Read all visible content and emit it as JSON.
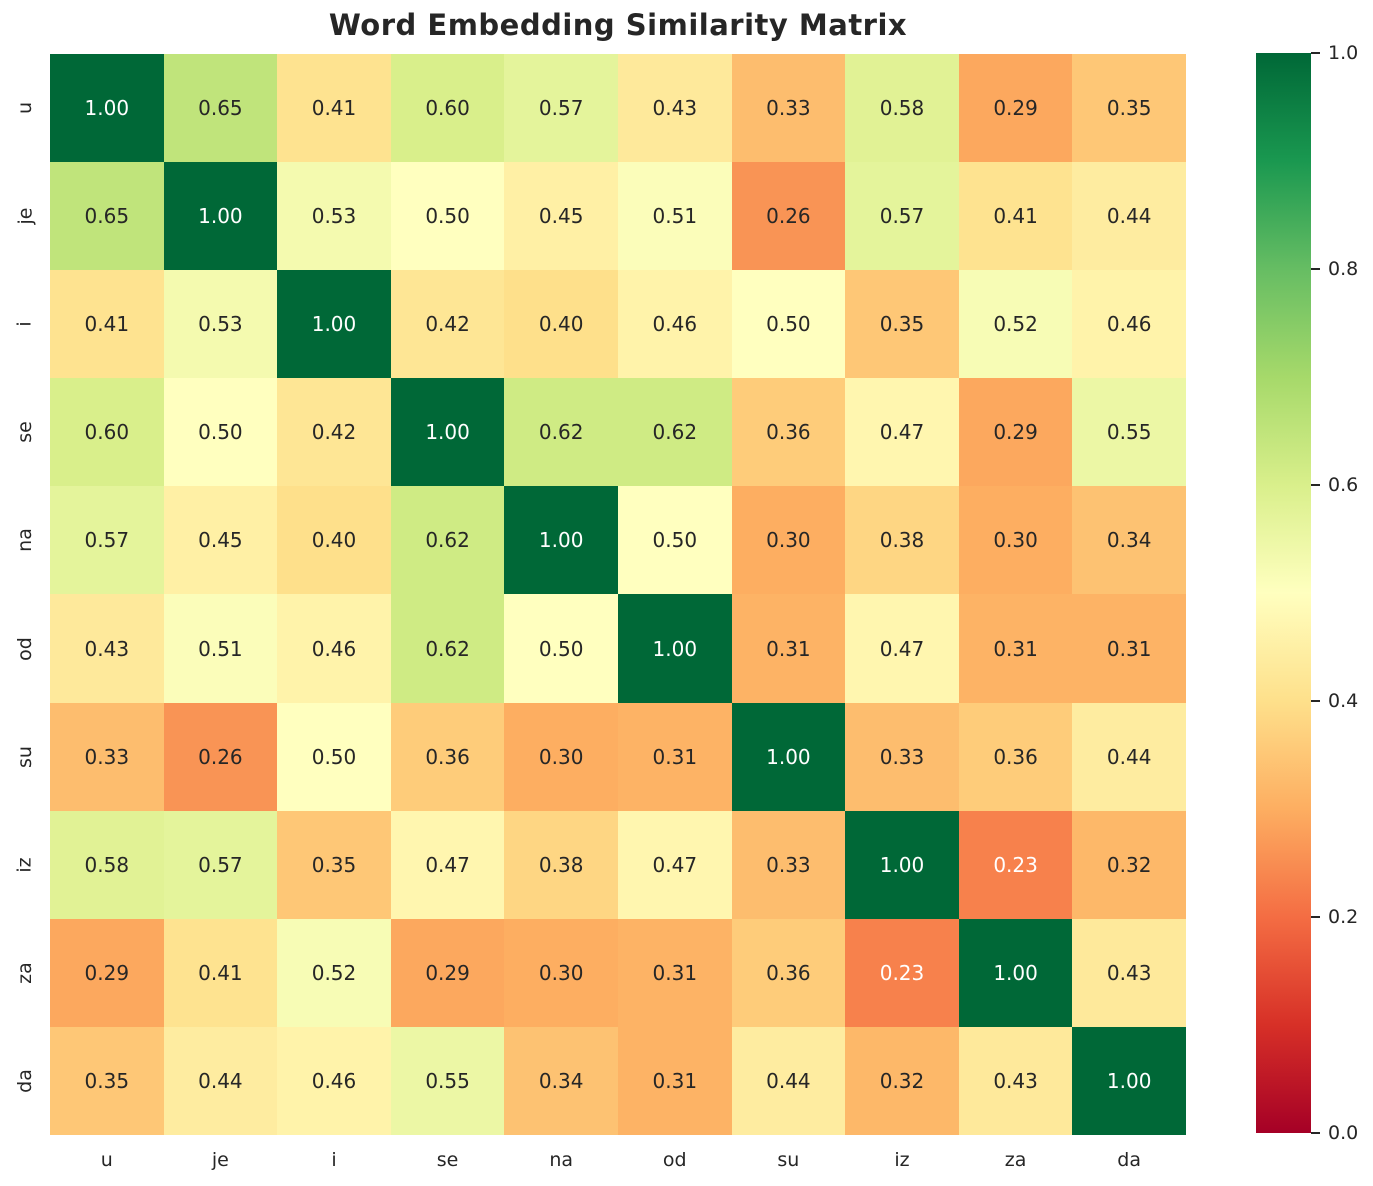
{
  "figure": {
    "title": "Word Embedding Similarity Matrix",
    "background": "#ffffff"
  },
  "chart_data": {
    "type": "heatmap",
    "title": "Word Embedding Similarity Matrix",
    "x_labels": [
      "u",
      "je",
      "i",
      "se",
      "na",
      "od",
      "su",
      "iz",
      "za",
      "da"
    ],
    "y_labels": [
      "u",
      "je",
      "i",
      "se",
      "na",
      "od",
      "su",
      "iz",
      "za",
      "da"
    ],
    "matrix": [
      [
        1.0,
        0.65,
        0.41,
        0.6,
        0.57,
        0.43,
        0.33,
        0.58,
        0.29,
        0.35
      ],
      [
        0.65,
        1.0,
        0.53,
        0.5,
        0.45,
        0.51,
        0.26,
        0.57,
        0.41,
        0.44
      ],
      [
        0.41,
        0.53,
        1.0,
        0.42,
        0.4,
        0.46,
        0.5,
        0.35,
        0.52,
        0.46
      ],
      [
        0.6,
        0.5,
        0.42,
        1.0,
        0.62,
        0.62,
        0.36,
        0.47,
        0.29,
        0.55
      ],
      [
        0.57,
        0.45,
        0.4,
        0.62,
        1.0,
        0.5,
        0.3,
        0.38,
        0.3,
        0.34
      ],
      [
        0.43,
        0.51,
        0.46,
        0.62,
        0.5,
        1.0,
        0.31,
        0.47,
        0.31,
        0.31
      ],
      [
        0.33,
        0.26,
        0.5,
        0.36,
        0.3,
        0.31,
        1.0,
        0.33,
        0.36,
        0.44
      ],
      [
        0.58,
        0.57,
        0.35,
        0.47,
        0.38,
        0.47,
        0.33,
        1.0,
        0.23,
        0.32
      ],
      [
        0.29,
        0.41,
        0.52,
        0.29,
        0.3,
        0.31,
        0.36,
        0.23,
        1.0,
        0.43
      ],
      [
        0.35,
        0.44,
        0.46,
        0.55,
        0.34,
        0.31,
        0.44,
        0.32,
        0.43,
        1.0
      ]
    ],
    "vmin": 0.0,
    "vmax": 1.0,
    "value_decimals": 2,
    "colormap_name": "RdYlGn",
    "colormap_stops": [
      "#a50026",
      "#d73027",
      "#f46d43",
      "#fdae61",
      "#fee08b",
      "#ffffbf",
      "#d9ef8b",
      "#a6d96a",
      "#66bd63",
      "#1a9850",
      "#006837"
    ],
    "colorbar_ticks": [
      1.0,
      0.8,
      0.6,
      0.4,
      0.2,
      0.0
    ],
    "colorbar_position": "right",
    "annotation_dark_color": "#262626",
    "annotation_light_color": "#ffffff",
    "grid": false,
    "legend": false
  }
}
